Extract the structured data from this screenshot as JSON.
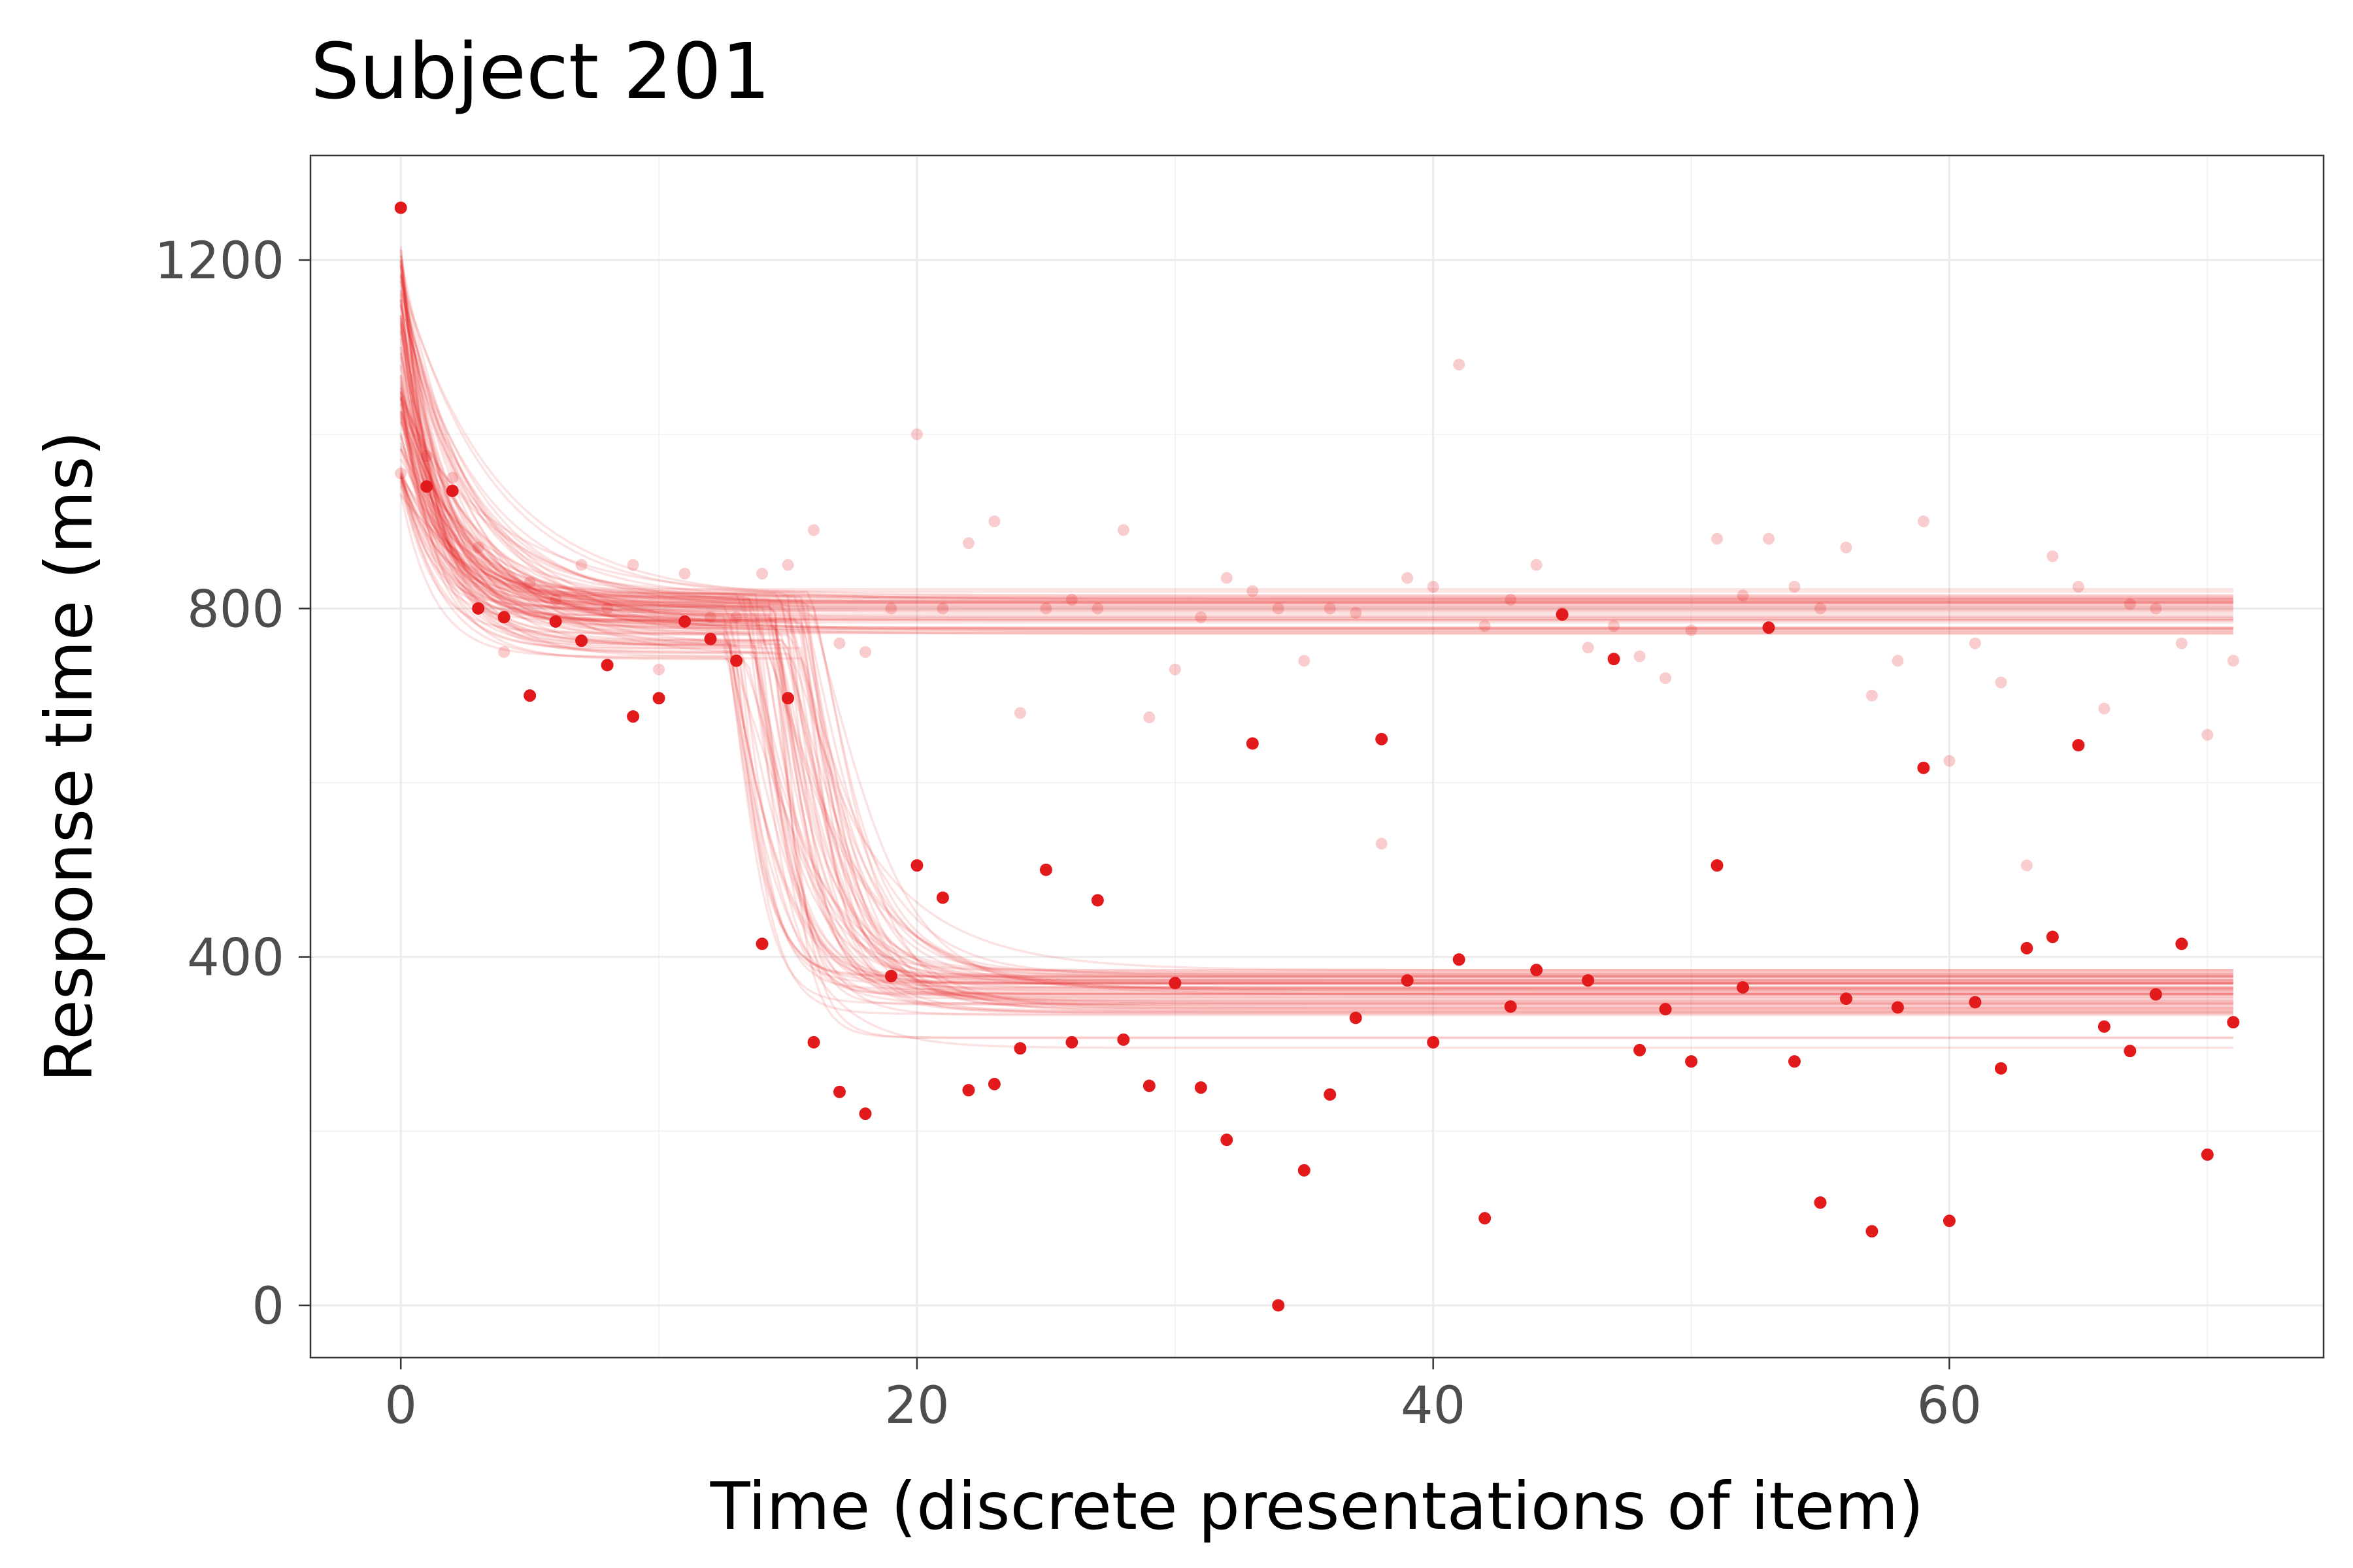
{
  "chart_data": {
    "type": "scatter",
    "title": "Subject 201",
    "xlabel": "Time (discrete presentations of item)",
    "ylabel": "Response time (ms)",
    "xlim": [
      -3.5,
      74.5
    ],
    "ylim": [
      -60,
      1320
    ],
    "x_ticks": [
      0,
      20,
      40,
      60
    ],
    "y_ticks": [
      0,
      400,
      800,
      1200
    ],
    "grid": true,
    "color": "#e31a1c",
    "series": [
      {
        "points": [
          [
            0,
            1260
          ],
          [
            1,
            940
          ],
          [
            2,
            935
          ],
          [
            3,
            800
          ],
          [
            4,
            790
          ],
          [
            5,
            700
          ],
          [
            6,
            785
          ],
          [
            7,
            763
          ],
          [
            8,
            735
          ],
          [
            9,
            676
          ],
          [
            10,
            697
          ],
          [
            11,
            785
          ],
          [
            12,
            765
          ],
          [
            13,
            740
          ],
          [
            14,
            415
          ],
          [
            15,
            697
          ],
          [
            16,
            302
          ],
          [
            17,
            245
          ],
          [
            18,
            220
          ],
          [
            19,
            378
          ],
          [
            20,
            505
          ],
          [
            21,
            468
          ],
          [
            22,
            247
          ],
          [
            23,
            254
          ],
          [
            24,
            295
          ],
          [
            25,
            500
          ],
          [
            26,
            302
          ],
          [
            27,
            465
          ],
          [
            28,
            305
          ],
          [
            29,
            252
          ],
          [
            30,
            370
          ],
          [
            31,
            250
          ],
          [
            32,
            190
          ],
          [
            33,
            645
          ],
          [
            34,
            0
          ],
          [
            35,
            155
          ],
          [
            36,
            242
          ],
          [
            37,
            330
          ],
          [
            38,
            650
          ],
          [
            39,
            373
          ],
          [
            40,
            302
          ],
          [
            41,
            397
          ],
          [
            42,
            100
          ],
          [
            43,
            343
          ],
          [
            44,
            385
          ],
          [
            45,
            793
          ],
          [
            46,
            373
          ],
          [
            47,
            742
          ],
          [
            48,
            293
          ],
          [
            49,
            340
          ],
          [
            50,
            280
          ],
          [
            51,
            505
          ],
          [
            52,
            365
          ],
          [
            53,
            778
          ],
          [
            54,
            280
          ],
          [
            55,
            118
          ],
          [
            56,
            352
          ],
          [
            57,
            85
          ],
          [
            58,
            342
          ],
          [
            59,
            617
          ],
          [
            60,
            97
          ],
          [
            61,
            348
          ],
          [
            62,
            272
          ],
          [
            63,
            410
          ],
          [
            64,
            423
          ],
          [
            65,
            643
          ],
          [
            66,
            320
          ],
          [
            67,
            292
          ],
          [
            68,
            357
          ],
          [
            69,
            415
          ],
          [
            70,
            173
          ],
          [
            71,
            325
          ]
        ]
      },
      {
        "points": [
          [
            0,
            955
          ],
          [
            1,
            975
          ],
          [
            2,
            950
          ],
          [
            3,
            870
          ],
          [
            4,
            750
          ],
          [
            5,
            830
          ],
          [
            6,
            810
          ],
          [
            7,
            850
          ],
          [
            8,
            800
          ],
          [
            9,
            850
          ],
          [
            10,
            730
          ],
          [
            11,
            840
          ],
          [
            12,
            790
          ],
          [
            13,
            790
          ],
          [
            14,
            840
          ],
          [
            15,
            850
          ],
          [
            16,
            890
          ],
          [
            17,
            760
          ],
          [
            18,
            750
          ],
          [
            19,
            800
          ],
          [
            20,
            1000
          ],
          [
            21,
            800
          ],
          [
            22,
            875
          ],
          [
            23,
            900
          ],
          [
            24,
            680
          ],
          [
            25,
            800
          ],
          [
            26,
            810
          ],
          [
            27,
            800
          ],
          [
            28,
            890
          ],
          [
            29,
            675
          ],
          [
            30,
            730
          ],
          [
            31,
            790
          ],
          [
            32,
            835
          ],
          [
            33,
            820
          ],
          [
            34,
            800
          ],
          [
            35,
            740
          ],
          [
            36,
            800
          ],
          [
            37,
            795
          ],
          [
            38,
            530
          ],
          [
            39,
            835
          ],
          [
            40,
            825
          ],
          [
            41,
            1080
          ],
          [
            42,
            780
          ],
          [
            43,
            810
          ],
          [
            44,
            850
          ],
          [
            45,
            795
          ],
          [
            46,
            755
          ],
          [
            47,
            780
          ],
          [
            48,
            745
          ],
          [
            49,
            720
          ],
          [
            50,
            775
          ],
          [
            51,
            880
          ],
          [
            52,
            815
          ],
          [
            53,
            880
          ],
          [
            54,
            825
          ],
          [
            55,
            800
          ],
          [
            56,
            870
          ],
          [
            57,
            700
          ],
          [
            58,
            740
          ],
          [
            59,
            900
          ],
          [
            60,
            625
          ],
          [
            61,
            760
          ],
          [
            62,
            715
          ],
          [
            63,
            505
          ],
          [
            64,
            860
          ],
          [
            65,
            825
          ],
          [
            66,
            685
          ],
          [
            67,
            805
          ],
          [
            68,
            800
          ],
          [
            69,
            760
          ],
          [
            70,
            655
          ],
          [
            71,
            740
          ]
        ]
      }
    ]
  }
}
